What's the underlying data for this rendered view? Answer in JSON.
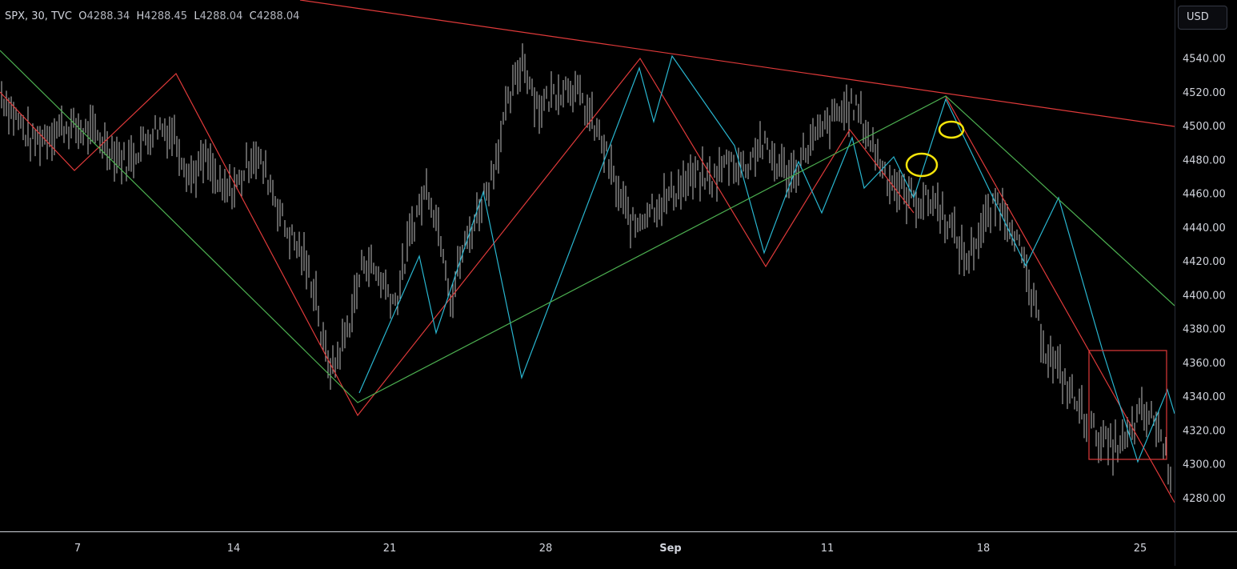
{
  "legend": {
    "symbol": "SPX, 30, TVC",
    "open_label": "O",
    "open": "4288.34",
    "high_label": "H",
    "high": "4288.45",
    "low_label": "L",
    "low": "4288.04",
    "close_label": "C",
    "close": "4288.04"
  },
  "currency_button": "USD",
  "colors": {
    "background": "#000000",
    "bars": "#bfbfbf",
    "red_lines": "#e03a3a",
    "cyan_lines": "#29b6d0",
    "green_lines": "#4caf50",
    "markers": "#f5e50a",
    "axis_text": "#d1d4dc"
  },
  "chart_data": {
    "type": "line",
    "symbol": "SPX",
    "interval": "30",
    "x_ticks": [
      "7",
      "14",
      "21",
      "28",
      "Sep",
      "11",
      "18",
      "25"
    ],
    "y_ticks": [
      "4280.00",
      "4300.00",
      "4320.00",
      "4340.00",
      "4360.00",
      "4380.00",
      "4400.00",
      "4420.00",
      "4440.00",
      "4460.00",
      "4480.00",
      "4500.00",
      "4520.00",
      "4540.00"
    ],
    "ylim": [
      4268,
      4553
    ],
    "price_path": {
      "x": [
        0,
        1,
        2,
        4,
        6,
        8,
        9,
        10,
        11,
        12,
        13,
        14,
        15,
        16,
        17,
        18,
        19,
        20,
        20.3,
        21,
        22,
        23,
        24,
        25,
        26,
        27,
        28,
        28.5,
        29,
        30,
        31,
        32,
        33,
        34,
        35,
        36,
        37,
        38,
        39,
        40,
        41,
        42,
        43,
        44,
        45,
        46,
        47,
        48,
        49,
        50,
        51,
        52,
        53,
        54,
        55,
        56,
        57,
        58,
        59,
        60,
        61,
        62,
        63,
        64,
        65,
        66,
        67,
        68,
        69,
        70,
        71,
        72,
        73,
        74
      ],
      "y": [
        4520,
        4505,
        4490,
        4500,
        4495,
        4478,
        4490,
        4500,
        4495,
        4470,
        4480,
        4460,
        4465,
        4485,
        4468,
        4440,
        4425,
        4400,
        4372,
        4355,
        4382,
        4422,
        4410,
        4395,
        4440,
        4465,
        4428,
        4395,
        4420,
        4445,
        4470,
        4510,
        4540,
        4510,
        4520,
        4525,
        4510,
        4490,
        4460,
        4440,
        4452,
        4456,
        4465,
        4470,
        4468,
        4480,
        4475,
        4490,
        4478,
        4470,
        4488,
        4498,
        4508,
        4512,
        4490,
        4470,
        4460,
        4455,
        4456,
        4440,
        4420,
        4440,
        4455,
        4440,
        4402,
        4368,
        4352,
        4335,
        4320,
        4310,
        4312,
        4330,
        4325,
        4292
      ]
    },
    "annotations": [
      {
        "type": "zigzag",
        "color": "#e03a3a"
      },
      {
        "type": "zigzag",
        "color": "#29b6d0"
      },
      {
        "type": "zigzag",
        "color": "#4caf50"
      },
      {
        "type": "trendline",
        "color": "#e03a3a"
      },
      {
        "type": "rectangle",
        "color": "#e03a3a"
      },
      {
        "type": "ellipse",
        "color": "#f5e50a"
      },
      {
        "type": "ellipse",
        "color": "#f5e50a"
      }
    ]
  }
}
